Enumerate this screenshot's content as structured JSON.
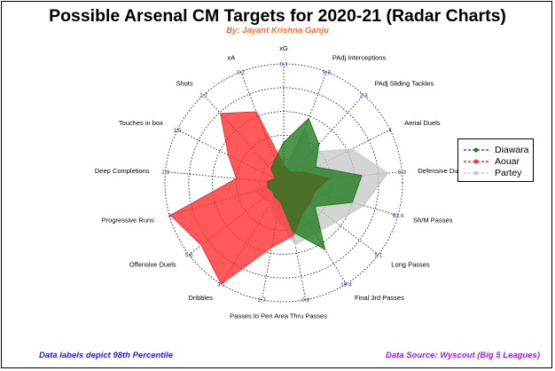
{
  "title": "Possible Arsenal CM Targets for 2020-21 (Radar Charts)",
  "subtitle": "By: Jayant Krishna Ganju",
  "footer_left": "Data labels depict 98th Percentile",
  "footer_right": "Data Source: Wyscout (Big 5 Leagues)",
  "colors": {
    "Diawara": "#1e7a1e",
    "Aouar": "#ff2a2a",
    "Partey": "#c8c8c8",
    "grid": "#000000",
    "tick_labels": "#2a2acc"
  },
  "chart_data": {
    "type": "radar",
    "axes": [
      "xG",
      "PAdj Interceptions",
      "PAdj Sliding Tackles",
      "Aerial Duels",
      "Defensive Duels",
      "Sh/M Passes",
      "Long Passes",
      "Final 3rd Passes",
      "Thru Passes",
      "Passes to Pen Area",
      "Dribbles",
      "Offensive Duels",
      "Progressive Runs",
      "Deep Completions",
      "Touches in box",
      "Shots",
      "xA"
    ],
    "max_labels": [
      "0.3",
      "9.3",
      "2.3",
      "4",
      "6.9",
      "63.4",
      "5.1",
      "10.4",
      "0.9",
      "2.7",
      "3.1",
      "5.6",
      "3",
      "2.9",
      "3.5",
      "2.7",
      "0.2"
    ],
    "range": [
      0,
      1
    ],
    "rings": 5,
    "series": [
      {
        "name": "Diawara",
        "values": [
          0.34,
          0.58,
          0.44,
          0.3,
          0.66,
          0.6,
          0.33,
          0.66,
          0.42,
          0.16,
          0.14,
          0.12,
          0.14,
          0.14,
          0.08,
          0.16,
          0.21
        ]
      },
      {
        "name": "Aouar",
        "values": [
          0.15,
          0.11,
          0.12,
          0.2,
          0.38,
          0.27,
          0.28,
          0.3,
          0.45,
          0.55,
          1.0,
          0.87,
          0.99,
          0.4,
          0.52,
          0.79,
          0.64
        ]
      },
      {
        "name": "Partey",
        "values": [
          0.1,
          0.5,
          0.35,
          0.64,
          0.88,
          0.7,
          0.55,
          0.5,
          0.53,
          0.3,
          0.2,
          0.22,
          0.25,
          0.1,
          0.08,
          0.14,
          0.22
        ]
      }
    ],
    "legend_position": "right"
  }
}
